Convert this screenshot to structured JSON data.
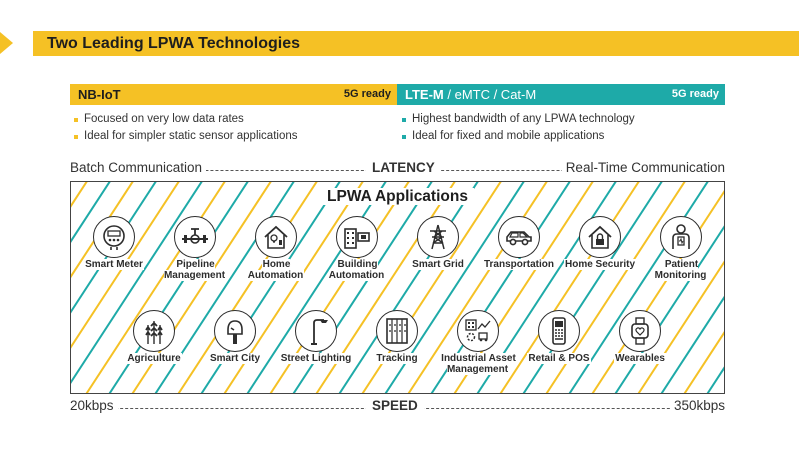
{
  "header": {
    "title": "Two Leading LPWA Technologies"
  },
  "technologies": [
    {
      "name": "NB-IoT",
      "badge": "5G ready",
      "bullets": [
        "Focused on very low data rates",
        "Ideal for simpler static sensor applications"
      ],
      "color": "#f5c125"
    },
    {
      "name_bold": "LTE-M",
      "name_rest": " / eMTC / Cat-M",
      "badge": "5G ready",
      "bullets": [
        "Highest bandwidth of any LPWA technology",
        "Ideal for fixed and mobile applications"
      ],
      "color": "#1eaaa8"
    }
  ],
  "latency": {
    "left": "Batch Communication",
    "center": "LATENCY",
    "right": "Real-Time Communication"
  },
  "speed": {
    "left": "20kbps",
    "center": "SPEED",
    "right": "350kbps"
  },
  "applications": {
    "title": "LPWA Applications",
    "row1": [
      {
        "label": "Smart Meter",
        "icon": "smart-meter-icon"
      },
      {
        "label": "Pipeline Management",
        "icon": "pipeline-icon"
      },
      {
        "label": "Home Automation",
        "icon": "home-automation-icon"
      },
      {
        "label": "Building Automation",
        "icon": "building-automation-icon"
      },
      {
        "label": "Smart Grid",
        "icon": "power-tower-icon"
      },
      {
        "label": "Transportation",
        "icon": "car-icon"
      },
      {
        "label": "Home Security",
        "icon": "home-lock-icon"
      },
      {
        "label": "Patient Monitoring",
        "icon": "patient-icon"
      }
    ],
    "row2": [
      {
        "label": "Agriculture",
        "icon": "wheat-icon"
      },
      {
        "label": "Smart City",
        "icon": "parking-meter-icon"
      },
      {
        "label": "Street Lighting",
        "icon": "street-light-icon"
      },
      {
        "label": "Tracking",
        "icon": "tracking-icon"
      },
      {
        "label": "Industrial Asset Management",
        "icon": "industrial-asset-icon"
      },
      {
        "label": "Retail & POS",
        "icon": "pos-terminal-icon"
      },
      {
        "label": "Wearables",
        "icon": "smartwatch-icon"
      }
    ]
  },
  "colors": {
    "yellow": "#f5c125",
    "teal": "#1eaaa8",
    "dark": "#2d2d2d"
  }
}
